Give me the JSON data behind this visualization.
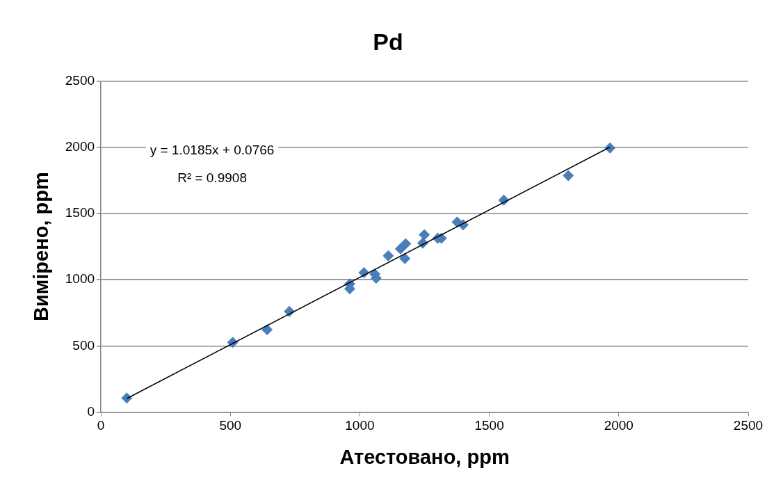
{
  "chart_data": {
    "type": "scatter",
    "title": "Pd",
    "xlabel": "Атестовано, ppm",
    "ylabel": "Вимірено, ppm",
    "xlim": [
      0,
      2500
    ],
    "xticks": [
      0,
      500,
      1000,
      1500,
      2000,
      2500
    ],
    "ylim": [
      0,
      2500
    ],
    "yticks": [
      0,
      500,
      1000,
      1500,
      2000,
      2500
    ],
    "grid": "y",
    "legend": false,
    "marker": "diamond",
    "series": [
      {
        "color": "#4a7ebb",
        "x": [
          100,
          509,
          642,
          728,
          961,
          961,
          1016,
          1058,
          1063,
          1110,
          1157,
          1177,
          1174,
          1243,
          1249,
          1301,
          1315,
          1376,
          1399,
          1556,
          1805,
          1966
        ],
        "values": [
          106,
          527,
          622,
          761,
          968,
          931,
          1053,
          1043,
          1011,
          1181,
          1234,
          1271,
          1160,
          1277,
          1340,
          1314,
          1314,
          1436,
          1415,
          1601,
          1787,
          1995
        ]
      },
      {
        "type": "line",
        "color": "#000000",
        "marker": "none",
        "x": [
          100,
          1966
        ],
        "values": [
          102,
          2002
        ]
      }
    ],
    "annotations": [
      "y = 1.0185x + 0.0766",
      "R² = 0.9908"
    ]
  }
}
